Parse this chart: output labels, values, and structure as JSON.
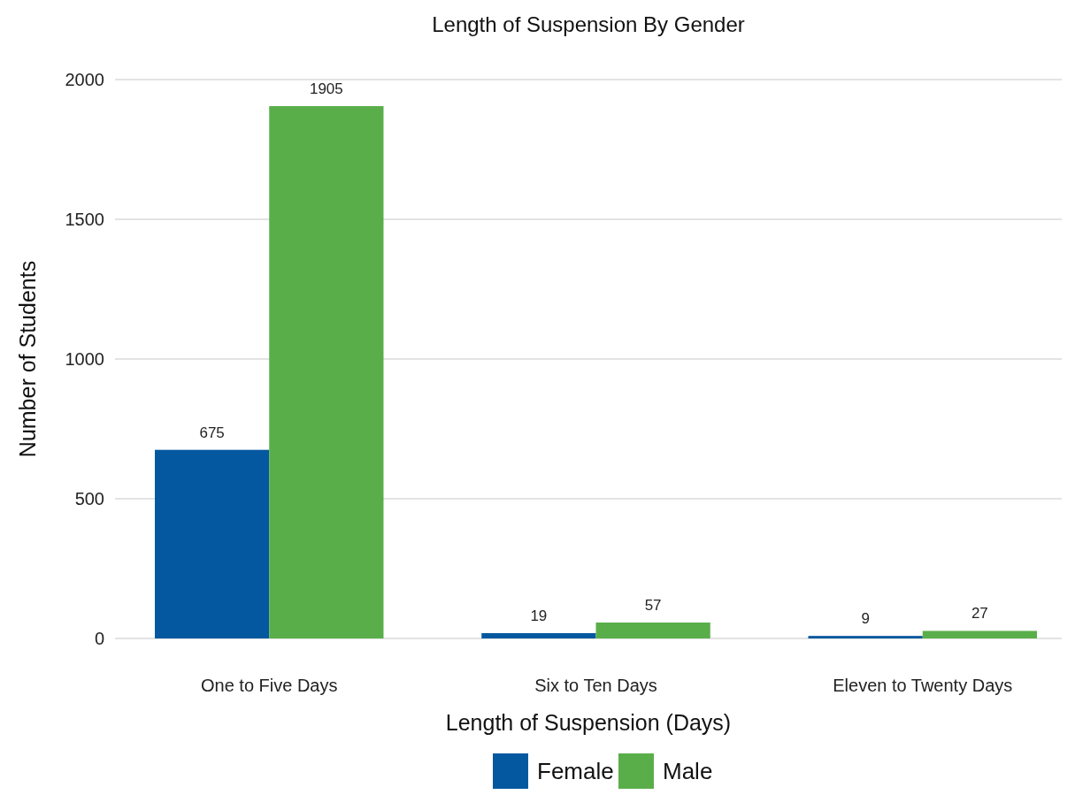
{
  "chart_data": {
    "type": "bar",
    "title": "Length of Suspension By Gender",
    "xlabel": "Length of Suspension (Days)",
    "ylabel": "Number of Students",
    "categories": [
      "One to Five Days",
      "Six to Ten Days",
      "Eleven to Twenty Days"
    ],
    "series": [
      {
        "name": "Female",
        "color": "#04589f",
        "values": [
          675,
          19,
          9
        ]
      },
      {
        "name": "Male",
        "color": "#5aae4a",
        "values": [
          1905,
          57,
          27
        ]
      }
    ],
    "ylim": [
      0,
      2000
    ],
    "yticks": [
      0,
      500,
      1000,
      1500,
      2000
    ],
    "grid": "y",
    "legend": "bottom",
    "data_labels": true
  }
}
